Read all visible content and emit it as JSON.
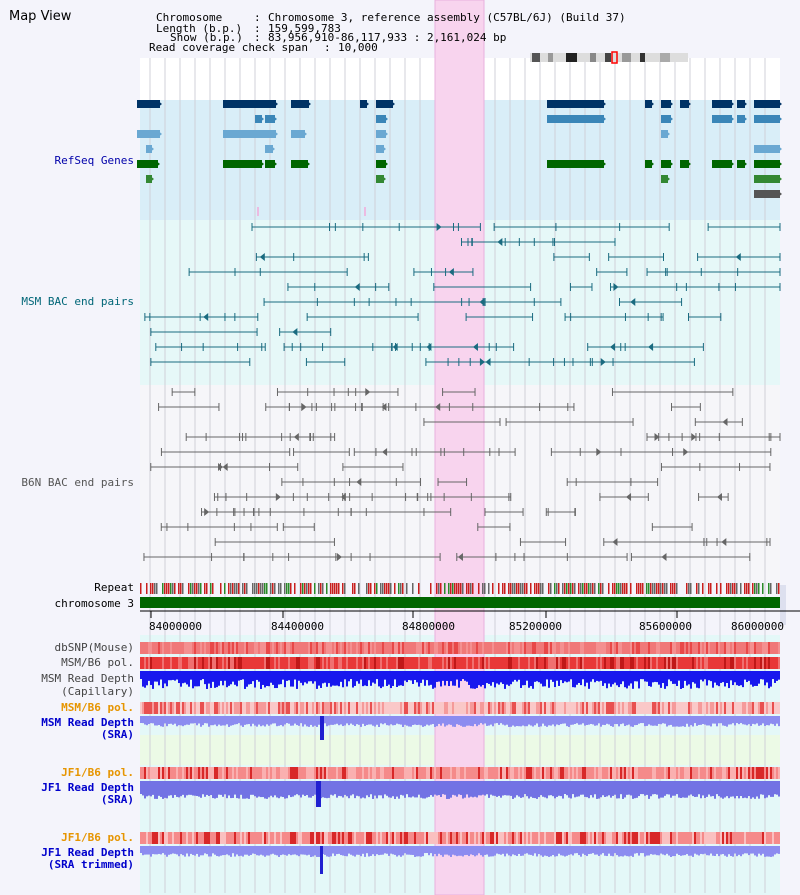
{
  "page": {
    "title": "Map View"
  },
  "info": {
    "chromosome_key": "Chromosome",
    "chromosome_val": "Chromosome 3, reference assembly (C57BL/6J) (Build 37)",
    "length_key": "Length (b.p.)",
    "length_val": "159,599,783",
    "show_key": "Show (b.p.)",
    "show_val": "83,956,910-86,117,933 : 2,161,024 bp",
    "coverage_key": "Read coverage check span",
    "coverage_val": "10,000"
  },
  "tracks": {
    "refseq": "RefSeq Genes",
    "msm_bac": "MSM BAC end pairs",
    "b6n_bac": "B6N BAC end pairs",
    "repeat": "Repeat",
    "chromosome": "chromosome 3",
    "dbsnp": "dbSNP(Mouse)",
    "msm_b6_pol": "MSM/B6 pol.",
    "msm_depth_cap_1": "MSM Read Depth",
    "msm_depth_cap_2": "(Capillary)",
    "msm_b6_pol_2": "MSM/B6 pol.",
    "msm_depth_sra_1": "MSM Read Depth",
    "msm_depth_sra_2": "(SRA)",
    "jf1_b6_pol": "JF1/B6 pol.",
    "jf1_depth_sra_1": "JF1 Read Depth",
    "jf1_depth_sra_2": "(SRA)",
    "jf1_b6_pol_2": "JF1/B6 pol.",
    "jf1_depth_trim_1": "JF1 Read Depth",
    "jf1_depth_trim_2": "(SRA trimmed)"
  },
  "axis": {
    "ticks": [
      "84000000",
      "84400000",
      "84800000",
      "85200000",
      "85600000",
      "86000000"
    ]
  },
  "colors": {
    "refseq_label": "#0000aa",
    "msm_label": "#006677",
    "b6n_label": "#555555",
    "orange_label": "#e69500",
    "blue_label": "#0000cc",
    "highlight": "#f8d4ee",
    "chromosome_bar": "#006600"
  }
}
